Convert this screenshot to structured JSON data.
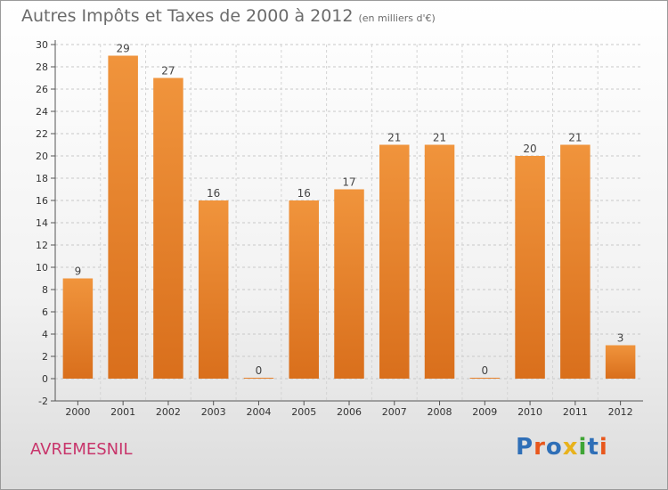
{
  "header": {
    "title": "Autres Impôts et Taxes de 2000 à 2012",
    "unit": "(en milliers d'€)"
  },
  "footer": {
    "place": "AVREMESNIL"
  },
  "logo": {
    "text": "Proxiti",
    "letter_colors": [
      "#2f6fb7",
      "#e8571c",
      "#2f6fb7",
      "#e8b21c",
      "#3fa535",
      "#2f6fb7",
      "#e8571c"
    ]
  },
  "chart_data": {
    "type": "bar",
    "title": "Autres Impôts et Taxes de 2000 à 2012",
    "subtitle": "(en milliers d'€)",
    "xlabel": "",
    "ylabel": "",
    "categories": [
      "2000",
      "2001",
      "2002",
      "2003",
      "2004",
      "2005",
      "2006",
      "2007",
      "2008",
      "2009",
      "2010",
      "2011",
      "2012"
    ],
    "values": [
      9,
      29,
      27,
      16,
      0,
      16,
      17,
      21,
      21,
      0,
      20,
      21,
      3
    ],
    "data_labels": [
      "9",
      "29",
      "27",
      "16",
      "0",
      "16",
      "17",
      "21",
      "21",
      "0",
      "20",
      "21",
      "3"
    ],
    "ylim": [
      -2,
      30
    ],
    "yticks": [
      -2,
      0,
      2,
      4,
      6,
      8,
      10,
      12,
      14,
      16,
      18,
      20,
      22,
      24,
      26,
      28,
      30
    ],
    "grid": true,
    "bar_color": "#f0943c",
    "bar_color_dark": "#d96f1c"
  }
}
